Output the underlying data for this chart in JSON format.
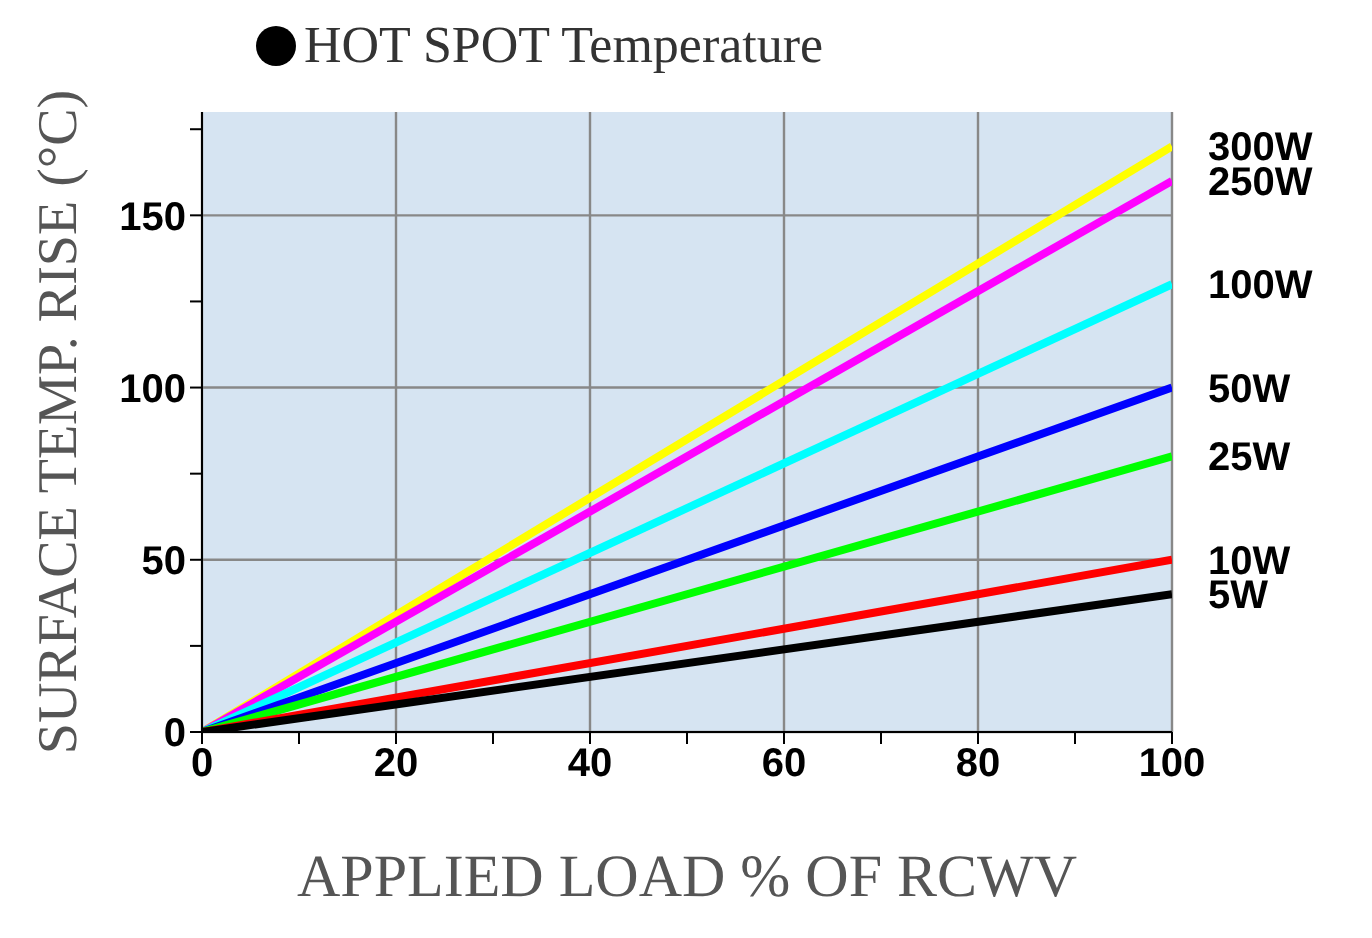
{
  "chart_data": {
    "type": "line",
    "title": "HOT SPOT Temperature",
    "xlabel": "APPLIED LOAD % OF RCWV",
    "ylabel": "SURFACE TEMP. RISE (°C)",
    "x": [
      0,
      100
    ],
    "series": [
      {
        "name": "300W",
        "color": "#ffff00",
        "values": [
          0,
          170
        ]
      },
      {
        "name": "250W",
        "color": "#ff00ff",
        "values": [
          0,
          160
        ]
      },
      {
        "name": "100W",
        "color": "#00ffff",
        "values": [
          0,
          130
        ]
      },
      {
        "name": "50W",
        "color": "#0000ff",
        "values": [
          0,
          100
        ]
      },
      {
        "name": "25W",
        "color": "#00ff00",
        "values": [
          0,
          80
        ]
      },
      {
        "name": "10W",
        "color": "#ff0000",
        "values": [
          0,
          50
        ]
      },
      {
        "name": "5W",
        "color": "#000000",
        "values": [
          0,
          40
        ]
      }
    ],
    "xlim": [
      0,
      100
    ],
    "xticks": [
      0,
      {
        "value": 10,
        "label": null
      },
      20,
      {
        "value": 30,
        "label": null
      },
      40,
      {
        "value": 50,
        "label": null
      },
      60,
      {
        "value": 70,
        "label": null
      },
      80,
      {
        "value": 90,
        "label": null
      },
      100
    ],
    "ylim": [
      0,
      180
    ],
    "yticks": [
      0,
      {
        "value": 25,
        "label": null
      },
      50,
      {
        "value": 75,
        "label": null
      },
      100,
      {
        "value": 125,
        "label": null
      },
      150,
      {
        "value": 175,
        "label": null
      }
    ],
    "grid": true,
    "marker": "none",
    "line_style": "solid"
  }
}
